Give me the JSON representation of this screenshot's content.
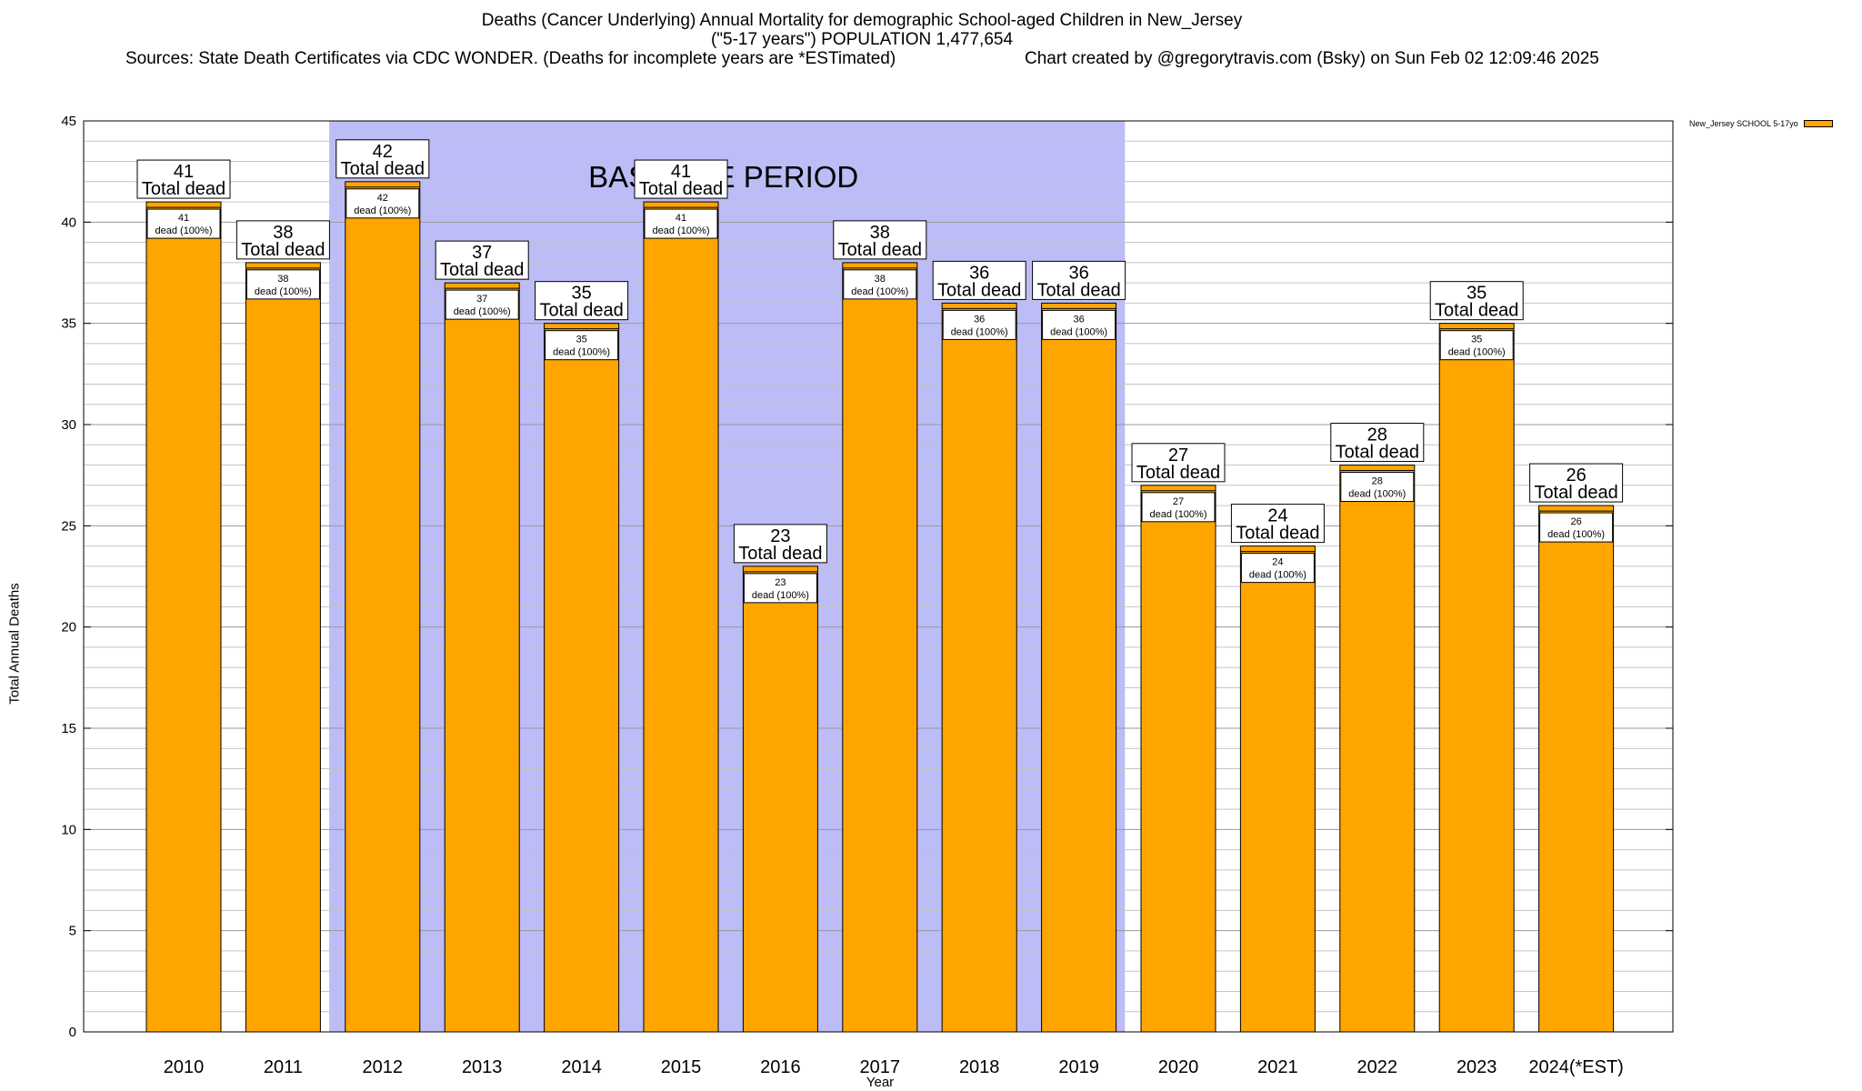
{
  "chart_data": {
    "type": "bar",
    "title_lines": [
      "Deaths (Cancer Underlying) Annual Mortality for demographic School-aged Children in New_Jersey",
      "(\"5-17 years\") POPULATION 1,477,654"
    ],
    "source_text": "Sources: State Death Certificates via CDC WONDER. (Deaths for incomplete years are *ESTimated)",
    "credit_text": "Chart created by @gregorytravis.com (Bsky) on Sun Feb 02 12:09:46 2025",
    "xlabel": "Year",
    "ylabel": "Total Annual Deaths",
    "categories": [
      "2010",
      "2011",
      "2012",
      "2013",
      "2014",
      "2015",
      "2016",
      "2017",
      "2018",
      "2019",
      "2020",
      "2021",
      "2022",
      "2023",
      "2024(*EST)"
    ],
    "series": [
      {
        "name": "New_Jersey SCHOOL 5-17yo",
        "values": [
          41,
          38,
          42,
          37,
          35,
          41,
          23,
          38,
          36,
          36,
          27,
          24,
          28,
          35,
          26
        ]
      }
    ],
    "top_label_suffix": "Total dead",
    "inner_label_suffix": "dead (100%)",
    "ylim": [
      0,
      45
    ],
    "yticks": [
      0,
      5,
      10,
      15,
      20,
      25,
      30,
      35,
      40,
      45
    ],
    "grid": true,
    "legend_position": "top-right",
    "baseline_period": {
      "label": "BASELINE PERIOD",
      "from_category": "2012",
      "to_category": "2019"
    },
    "colors": {
      "bar": "#ffa500",
      "baseline_shade": "#bcbcf7",
      "grid": "#b0b0b0"
    }
  }
}
